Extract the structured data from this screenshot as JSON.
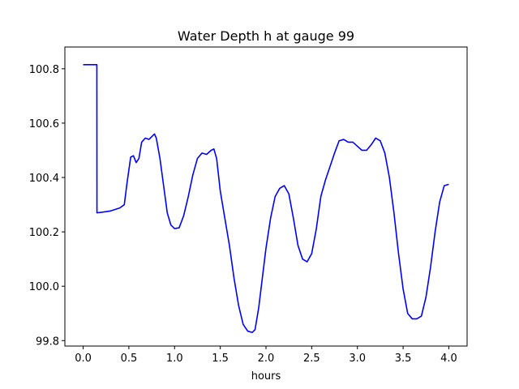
{
  "chart_data": {
    "type": "line",
    "title": "Water Depth h at gauge 99",
    "xlabel": "hours",
    "ylabel": "",
    "xlim": [
      -0.2,
      4.2
    ],
    "ylim": [
      99.78,
      100.88
    ],
    "xticks": [
      0.0,
      0.5,
      1.0,
      1.5,
      2.0,
      2.5,
      3.0,
      3.5,
      4.0
    ],
    "xtick_labels": [
      "0.0",
      "0.5",
      "1.0",
      "1.5",
      "2.0",
      "2.5",
      "3.0",
      "3.5",
      "4.0"
    ],
    "yticks": [
      99.8,
      100.0,
      100.2,
      100.4,
      100.6,
      100.8
    ],
    "ytick_labels": [
      "99.8",
      "100.0",
      "100.2",
      "100.4",
      "100.6",
      "100.8"
    ],
    "grid": false,
    "series": [
      {
        "color": "#0000ff",
        "x": [
          0.0,
          0.05,
          0.1,
          0.15,
          0.151,
          0.2,
          0.3,
          0.4,
          0.45,
          0.48,
          0.52,
          0.55,
          0.58,
          0.61,
          0.64,
          0.68,
          0.72,
          0.75,
          0.78,
          0.8,
          0.84,
          0.88,
          0.92,
          0.96,
          1.0,
          1.05,
          1.1,
          1.15,
          1.2,
          1.25,
          1.3,
          1.35,
          1.4,
          1.43,
          1.46,
          1.5,
          1.55,
          1.6,
          1.65,
          1.7,
          1.75,
          1.8,
          1.85,
          1.88,
          1.92,
          1.96,
          2.0,
          2.05,
          2.1,
          2.15,
          2.2,
          2.25,
          2.3,
          2.35,
          2.4,
          2.45,
          2.5,
          2.55,
          2.6,
          2.65,
          2.7,
          2.75,
          2.8,
          2.85,
          2.9,
          2.95,
          3.0,
          3.05,
          3.1,
          3.15,
          3.2,
          3.25,
          3.3,
          3.35,
          3.4,
          3.45,
          3.5,
          3.55,
          3.6,
          3.65,
          3.7,
          3.75,
          3.8,
          3.85,
          3.9,
          3.95,
          4.0
        ],
        "y": [
          100.815,
          100.815,
          100.815,
          100.815,
          100.27,
          100.272,
          100.277,
          100.288,
          100.3,
          100.38,
          100.475,
          100.48,
          100.455,
          100.47,
          100.53,
          100.545,
          100.54,
          100.55,
          100.56,
          100.545,
          100.47,
          100.37,
          100.27,
          100.225,
          100.212,
          100.215,
          100.26,
          100.33,
          100.41,
          100.47,
          100.49,
          100.485,
          100.5,
          100.505,
          100.47,
          100.35,
          100.25,
          100.15,
          100.03,
          99.93,
          99.86,
          99.835,
          99.83,
          99.84,
          99.92,
          100.03,
          100.14,
          100.25,
          100.33,
          100.36,
          100.37,
          100.34,
          100.25,
          100.15,
          100.1,
          100.09,
          100.12,
          100.21,
          100.33,
          100.39,
          100.44,
          100.49,
          100.535,
          100.54,
          100.53,
          100.53,
          100.515,
          100.5,
          100.5,
          100.52,
          100.545,
          100.535,
          100.49,
          100.4,
          100.27,
          100.12,
          99.99,
          99.9,
          99.88,
          99.88,
          99.89,
          99.96,
          100.07,
          100.2,
          100.31,
          100.37,
          100.375
        ]
      }
    ]
  }
}
